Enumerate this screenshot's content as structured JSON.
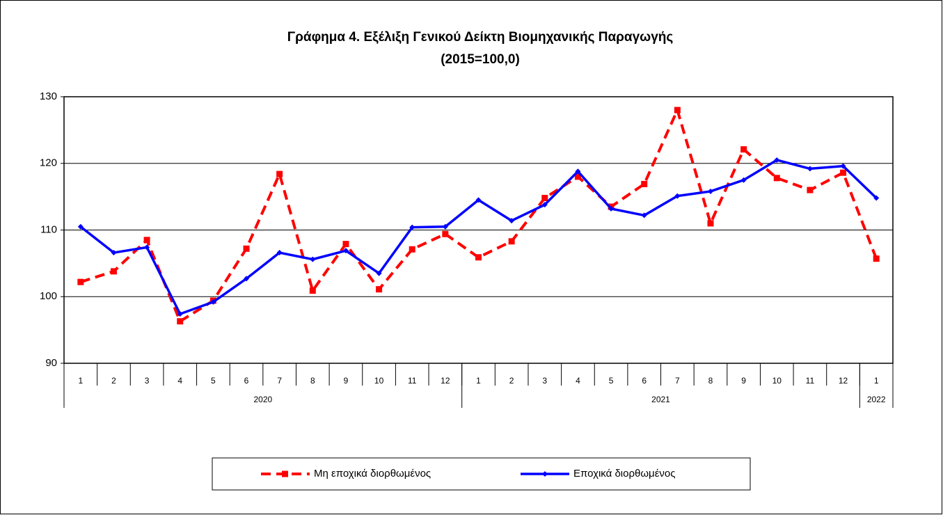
{
  "chart_data": {
    "type": "line",
    "title": "Γράφημα 4. Εξέλιξη Γενικού Δείκτη Βιομηχανικής Παραγωγής",
    "subtitle": "(2015=100,0)",
    "groups": [
      {
        "label": "2020",
        "categories": [
          "1",
          "2",
          "3",
          "4",
          "5",
          "6",
          "7",
          "8",
          "9",
          "10",
          "11",
          "12"
        ]
      },
      {
        "label": "2021",
        "categories": [
          "1",
          "2",
          "3",
          "4",
          "5",
          "6",
          "7",
          "8",
          "9",
          "10",
          "11",
          "12"
        ]
      },
      {
        "label": "2022",
        "categories": [
          "1"
        ]
      }
    ],
    "series": [
      {
        "name": "Μη εποχικά διορθωμένος",
        "color": "#ff0000",
        "dashed": true,
        "marker": "square",
        "values": [
          102.2,
          103.8,
          108.5,
          96.3,
          99.4,
          107.2,
          118.4,
          100.9,
          107.9,
          101.1,
          107.1,
          109.4,
          105.9,
          108.3,
          114.8,
          118.0,
          113.5,
          116.9,
          128.0,
          111.0,
          122.1,
          117.8,
          116.0,
          118.6,
          105.7
        ]
      },
      {
        "name": "Εποχικά διορθωμένος",
        "color": "#0000ff",
        "dashed": false,
        "marker": "diamond",
        "values": [
          110.5,
          106.6,
          107.4,
          97.4,
          99.2,
          102.7,
          106.6,
          105.6,
          106.9,
          103.5,
          110.4,
          110.5,
          114.5,
          111.4,
          113.8,
          118.8,
          113.2,
          112.2,
          115.1,
          115.8,
          117.5,
          120.5,
          119.2,
          119.6,
          114.8
        ]
      }
    ],
    "ylim": [
      90,
      130
    ],
    "yticks": [
      90,
      100,
      110,
      120,
      130
    ],
    "grid": true,
    "legend": "bottom"
  }
}
